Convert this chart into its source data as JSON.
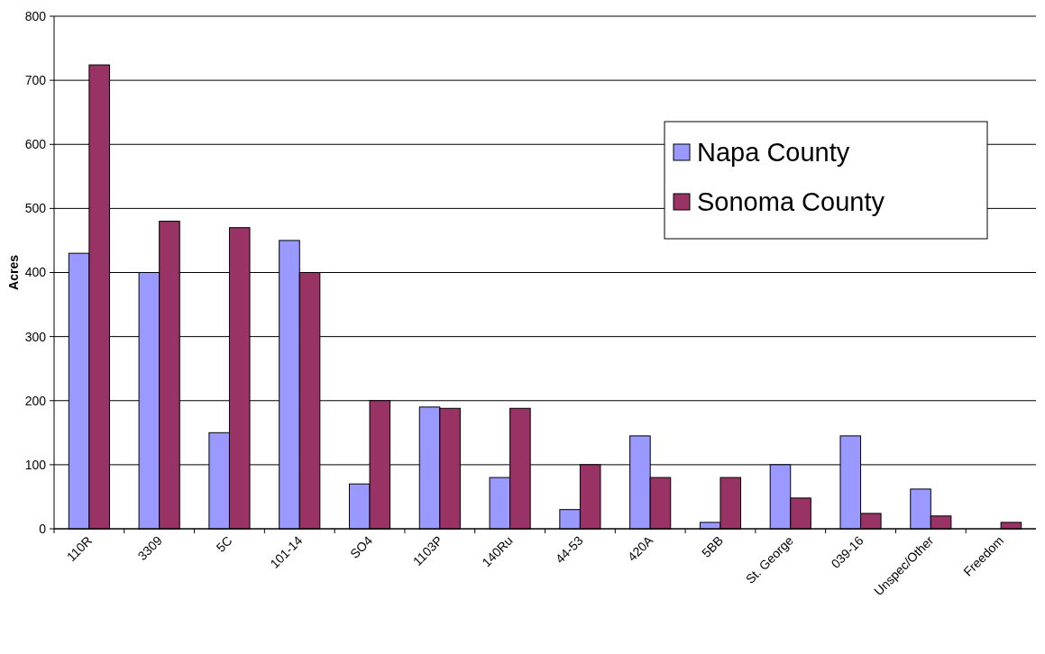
{
  "chart_data": {
    "type": "bar",
    "ylabel": "Acres",
    "categories": [
      "110R",
      "3309",
      "5C",
      "101-14",
      "SO4",
      "1103P",
      "140Ru",
      "44-53",
      "420A",
      "5BB",
      "St. George",
      "039-16",
      "Unspec/Other",
      "Freedom"
    ],
    "series": [
      {
        "name": "Napa County",
        "color": "#9999ff",
        "values": [
          430,
          400,
          150,
          450,
          70,
          190,
          80,
          30,
          145,
          10,
          100,
          145,
          62,
          0
        ]
      },
      {
        "name": "Sonoma County",
        "color": "#993366",
        "values": [
          724,
          480,
          470,
          400,
          200,
          188,
          188,
          100,
          80,
          80,
          48,
          24,
          20,
          10
        ]
      }
    ],
    "ylim": [
      0,
      800
    ],
    "yticks": [
      0,
      100,
      200,
      300,
      400,
      500,
      600,
      700,
      800
    ],
    "grid": "y",
    "legend": "top right"
  }
}
